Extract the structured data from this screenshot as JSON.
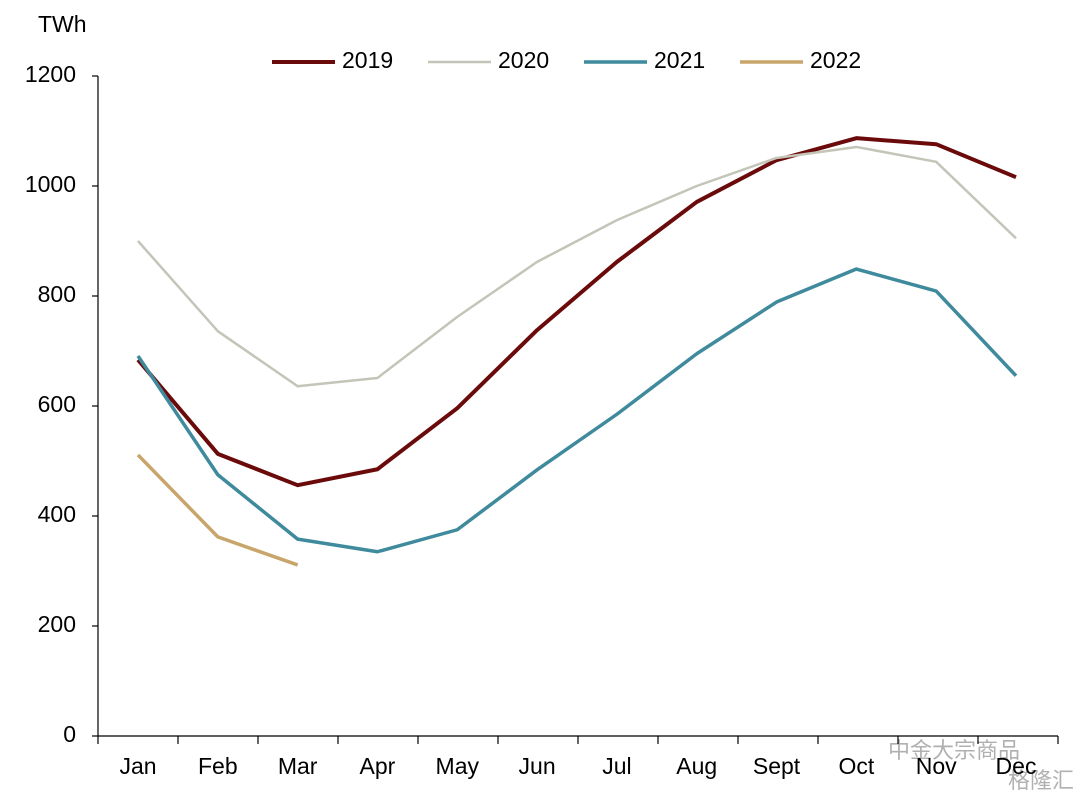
{
  "chart_data": {
    "type": "line",
    "y_axis_label": "TWh",
    "categories": [
      "Jan",
      "Feb",
      "Mar",
      "Apr",
      "May",
      "Jun",
      "Jul",
      "Aug",
      "Sept",
      "Oct",
      "Nov",
      "Dec"
    ],
    "series": [
      {
        "name": "2019",
        "color": "#6b0a0a",
        "values": [
          684,
          513,
          456,
          485,
          596,
          738,
          862,
          971,
          1047,
          1087,
          1076,
          1016
        ]
      },
      {
        "name": "2020",
        "color": "#c4c4b8",
        "values": [
          900,
          736,
          636,
          651,
          762,
          862,
          938,
          1000,
          1051,
          1071,
          1044,
          905
        ]
      },
      {
        "name": "2021",
        "color": "#3f8a9c",
        "values": [
          691,
          475,
          358,
          335,
          375,
          484,
          585,
          695,
          789,
          849,
          809,
          655
        ]
      },
      {
        "name": "2022",
        "color": "#c8a56a",
        "values": [
          511,
          362,
          311,
          null,
          null,
          null,
          null,
          null,
          null,
          null,
          null,
          null
        ]
      }
    ],
    "ylim": [
      0,
      1200
    ],
    "yticks": [
      0,
      200,
      400,
      600,
      800,
      1000,
      1200
    ],
    "legend": "top",
    "watermark": [
      "中金大宗商品",
      "格隆汇"
    ]
  }
}
